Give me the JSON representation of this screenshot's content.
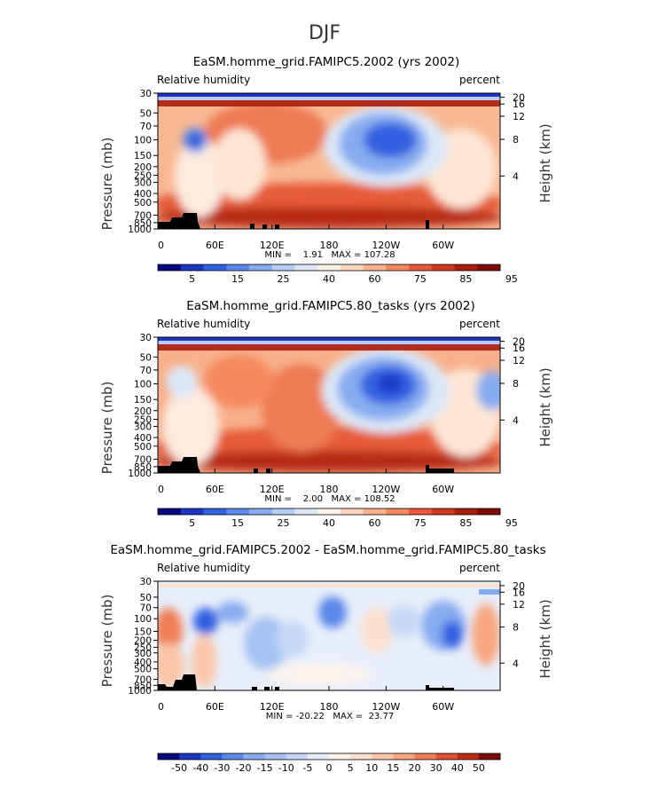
{
  "title": "DJF",
  "chart_data": [
    {
      "type": "heatmap",
      "title": "EaSM.homme_grid.FAMIPC5.2002 (yrs 2002)",
      "left_label": "Relative humidity",
      "right_label": "percent",
      "ylabel": "Pressure (mb)",
      "ylabel_right": "Height (km)",
      "pressure_ticks": [
        "30",
        "50",
        "70",
        "100",
        "150",
        "200",
        "250",
        "300",
        "400",
        "500",
        "700",
        "850",
        "1000"
      ],
      "height_ticks": [
        "20",
        "16",
        "12",
        "8",
        "4"
      ],
      "lon_ticks": [
        "0",
        "60E",
        "120E",
        "180",
        "120W",
        "60W"
      ],
      "stats": "MIN =    1.91   MAX = 107.28",
      "colorbar_labels": [
        "5",
        "15",
        "25",
        "40",
        "60",
        "75",
        "85",
        "95"
      ],
      "colorbar_colors": [
        "#08087e",
        "#1c35c3",
        "#3160e0",
        "#5c88ea",
        "#88acf0",
        "#b5cdf4",
        "#dce8f8",
        "#fdf0e8",
        "#fdd5bd",
        "#f9b190",
        "#f4895f",
        "#e9583a",
        "#cf3a1f",
        "#a81e0e",
        "#7e0a0a"
      ]
    },
    {
      "type": "heatmap",
      "title": "EaSM.homme_grid.FAMIPC5.80_tasks (yrs 2002)",
      "left_label": "Relative humidity",
      "right_label": "percent",
      "ylabel": "Pressure (mb)",
      "ylabel_right": "Height (km)",
      "pressure_ticks": [
        "30",
        "50",
        "70",
        "100",
        "150",
        "200",
        "250",
        "300",
        "400",
        "500",
        "700",
        "850",
        "1000"
      ],
      "height_ticks": [
        "20",
        "16",
        "12",
        "8",
        "4"
      ],
      "lon_ticks": [
        "0",
        "60E",
        "120E",
        "180",
        "120W",
        "60W"
      ],
      "stats": "MIN =    2.00   MAX = 108.52",
      "colorbar_labels": [
        "5",
        "15",
        "25",
        "40",
        "60",
        "75",
        "85",
        "95"
      ],
      "colorbar_colors": [
        "#08087e",
        "#1c35c3",
        "#3160e0",
        "#5c88ea",
        "#88acf0",
        "#b5cdf4",
        "#dce8f8",
        "#fdf0e8",
        "#fdd5bd",
        "#f9b190",
        "#f4895f",
        "#e9583a",
        "#cf3a1f",
        "#a81e0e",
        "#7e0a0a"
      ]
    },
    {
      "type": "heatmap",
      "title": "EaSM.homme_grid.FAMIPC5.2002 - EaSM.homme_grid.FAMIPC5.80_tasks",
      "left_label": "Relative humidity",
      "right_label": "percent",
      "ylabel": "Pressure (mb)",
      "ylabel_right": "Height (km)",
      "pressure_ticks": [
        "30",
        "50",
        "70",
        "100",
        "150",
        "200",
        "250",
        "300",
        "400",
        "500",
        "700",
        "850",
        "1000"
      ],
      "height_ticks": [
        "20",
        "16",
        "12",
        "8",
        "4"
      ],
      "lon_ticks": [
        "0",
        "60E",
        "120E",
        "180",
        "120W",
        "60W"
      ],
      "stats": "MIN = -20.22   MAX =  23.77",
      "colorbar_labels": [
        "-50",
        "-40",
        "-30",
        "-20",
        "-15",
        "-10",
        "-5",
        "0",
        "5",
        "10",
        "15",
        "20",
        "30",
        "40",
        "50"
      ],
      "colorbar_colors": [
        "#08087e",
        "#1c35c3",
        "#3160e0",
        "#5c88ea",
        "#88acf0",
        "#a7c2f2",
        "#c6d8f6",
        "#e4edf9",
        "#fdf4ee",
        "#fde0cf",
        "#fbc6a8",
        "#f8a781",
        "#f07f57",
        "#de5233",
        "#bd2c17",
        "#7e0a0a"
      ]
    }
  ]
}
